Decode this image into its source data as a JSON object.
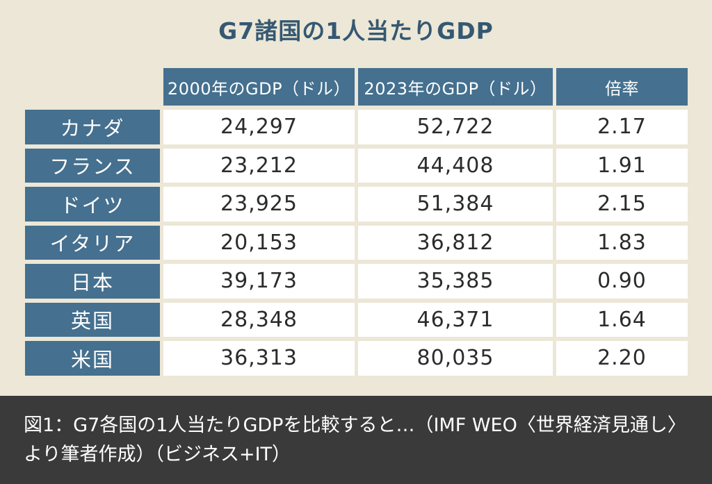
{
  "chart_data": {
    "type": "table",
    "title": "G7諸国の1人当たりGDP",
    "columns": [
      "2000年のGDP（ドル）",
      "2023年のGDP（ドル）",
      "倍率"
    ],
    "rows": [
      {
        "country": "カナダ",
        "values": [
          "24,297",
          "52,722",
          "2.17"
        ]
      },
      {
        "country": "フランス",
        "values": [
          "23,212",
          "44,408",
          "1.91"
        ]
      },
      {
        "country": "ドイツ",
        "values": [
          "23,925",
          "51,384",
          "2.15"
        ]
      },
      {
        "country": "イタリア",
        "values": [
          "20,153",
          "36,812",
          "1.83"
        ]
      },
      {
        "country": "日本",
        "values": [
          "39,173",
          "35,385",
          "0.90"
        ]
      },
      {
        "country": "英国",
        "values": [
          "28,348",
          "46,371",
          "1.64"
        ]
      },
      {
        "country": "米国",
        "values": [
          "36,313",
          "80,035",
          "2.20"
        ]
      }
    ]
  },
  "caption": "図1：G7各国の1人当たりGDPを比較すると…（IMF WEO〈世界経済見通し〉より筆者作成）（ビジネス+IT）",
  "colors": {
    "header_bg": "#45708f",
    "title": "#355872",
    "background": "#ece7d6",
    "caption_bg": "#3a3a3a"
  }
}
